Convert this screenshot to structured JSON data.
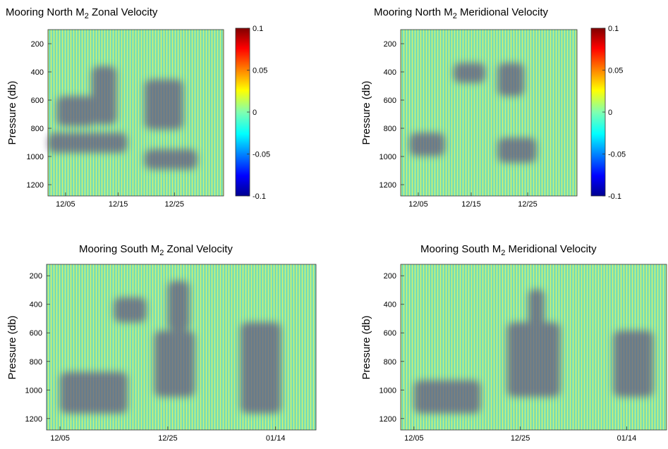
{
  "chart_data": [
    {
      "type": "heatmap",
      "title": "Mooring North M2 Zonal Velocity",
      "title_parts": {
        "prefix": "Mooring North M",
        "subscript": "2",
        "suffix": " Zonal Velocity"
      },
      "xlabel": "",
      "ylabel": "Pressure (db)",
      "x_ticks": [
        "12/05",
        "12/15",
        "12/25"
      ],
      "y_ticks": [
        200,
        400,
        600,
        800,
        1000,
        1200
      ],
      "ylim": [
        1280,
        100
      ],
      "colorbar": {
        "min": -0.1,
        "max": 0.1,
        "ticks": [
          "0.1",
          "0.05",
          "0",
          "-0.05",
          "-0.1"
        ]
      },
      "colormap": "jet",
      "background_color": "#8fe69a",
      "signal": "banded tidal oscillation, strongest near 550–700 db and 900–1050 db"
    },
    {
      "type": "heatmap",
      "title": "Mooring North M2 Meridional Velocity",
      "title_parts": {
        "prefix": "Mooring North M",
        "subscript": "2",
        "suffix": " Meridional Velocity"
      },
      "xlabel": "",
      "ylabel": "Pressure (db)",
      "x_ticks": [
        "12/05",
        "12/15",
        "12/25"
      ],
      "y_ticks": [
        200,
        400,
        600,
        800,
        1000,
        1200
      ],
      "ylim": [
        1280,
        100
      ],
      "colorbar": {
        "min": -0.1,
        "max": 0.1,
        "ticks": [
          "0.1",
          "0.05",
          "0",
          "-0.05",
          "-0.1"
        ]
      },
      "colormap": "jet",
      "background_color": "#8fe69a",
      "signal": "strongest near 900–1050 db around 12/25"
    },
    {
      "type": "heatmap",
      "title": "Mooring South M2 Zonal Velocity",
      "title_parts": {
        "prefix": "Mooring South M",
        "subscript": "2",
        "suffix": " Zonal Velocity"
      },
      "xlabel": "",
      "ylabel": "Pressure (db)",
      "x_ticks": [
        "12/05",
        "12/25",
        "01/14"
      ],
      "y_ticks": [
        200,
        400,
        600,
        800,
        1000,
        1200
      ],
      "ylim": [
        1280,
        120
      ],
      "colormap": "jet",
      "background_color": "#8fe69a",
      "signal": "strongest near 950–1150 db, patches around 12/25 and 01/14"
    },
    {
      "type": "heatmap",
      "title": "Mooring South M2 Meridional Velocity",
      "title_parts": {
        "prefix": "Mooring South M",
        "subscript": "2",
        "suffix": " Meridional Velocity"
      },
      "xlabel": "",
      "ylabel": "Pressure (db)",
      "x_ticks": [
        "12/05",
        "12/25",
        "01/14"
      ],
      "y_ticks": [
        200,
        400,
        600,
        800,
        1000,
        1200
      ],
      "ylim": [
        1280,
        120
      ],
      "colormap": "jet",
      "background_color": "#8fe69a",
      "signal": "strongest near 950–1050 db, patches around 12/25 and 01/14"
    }
  ]
}
